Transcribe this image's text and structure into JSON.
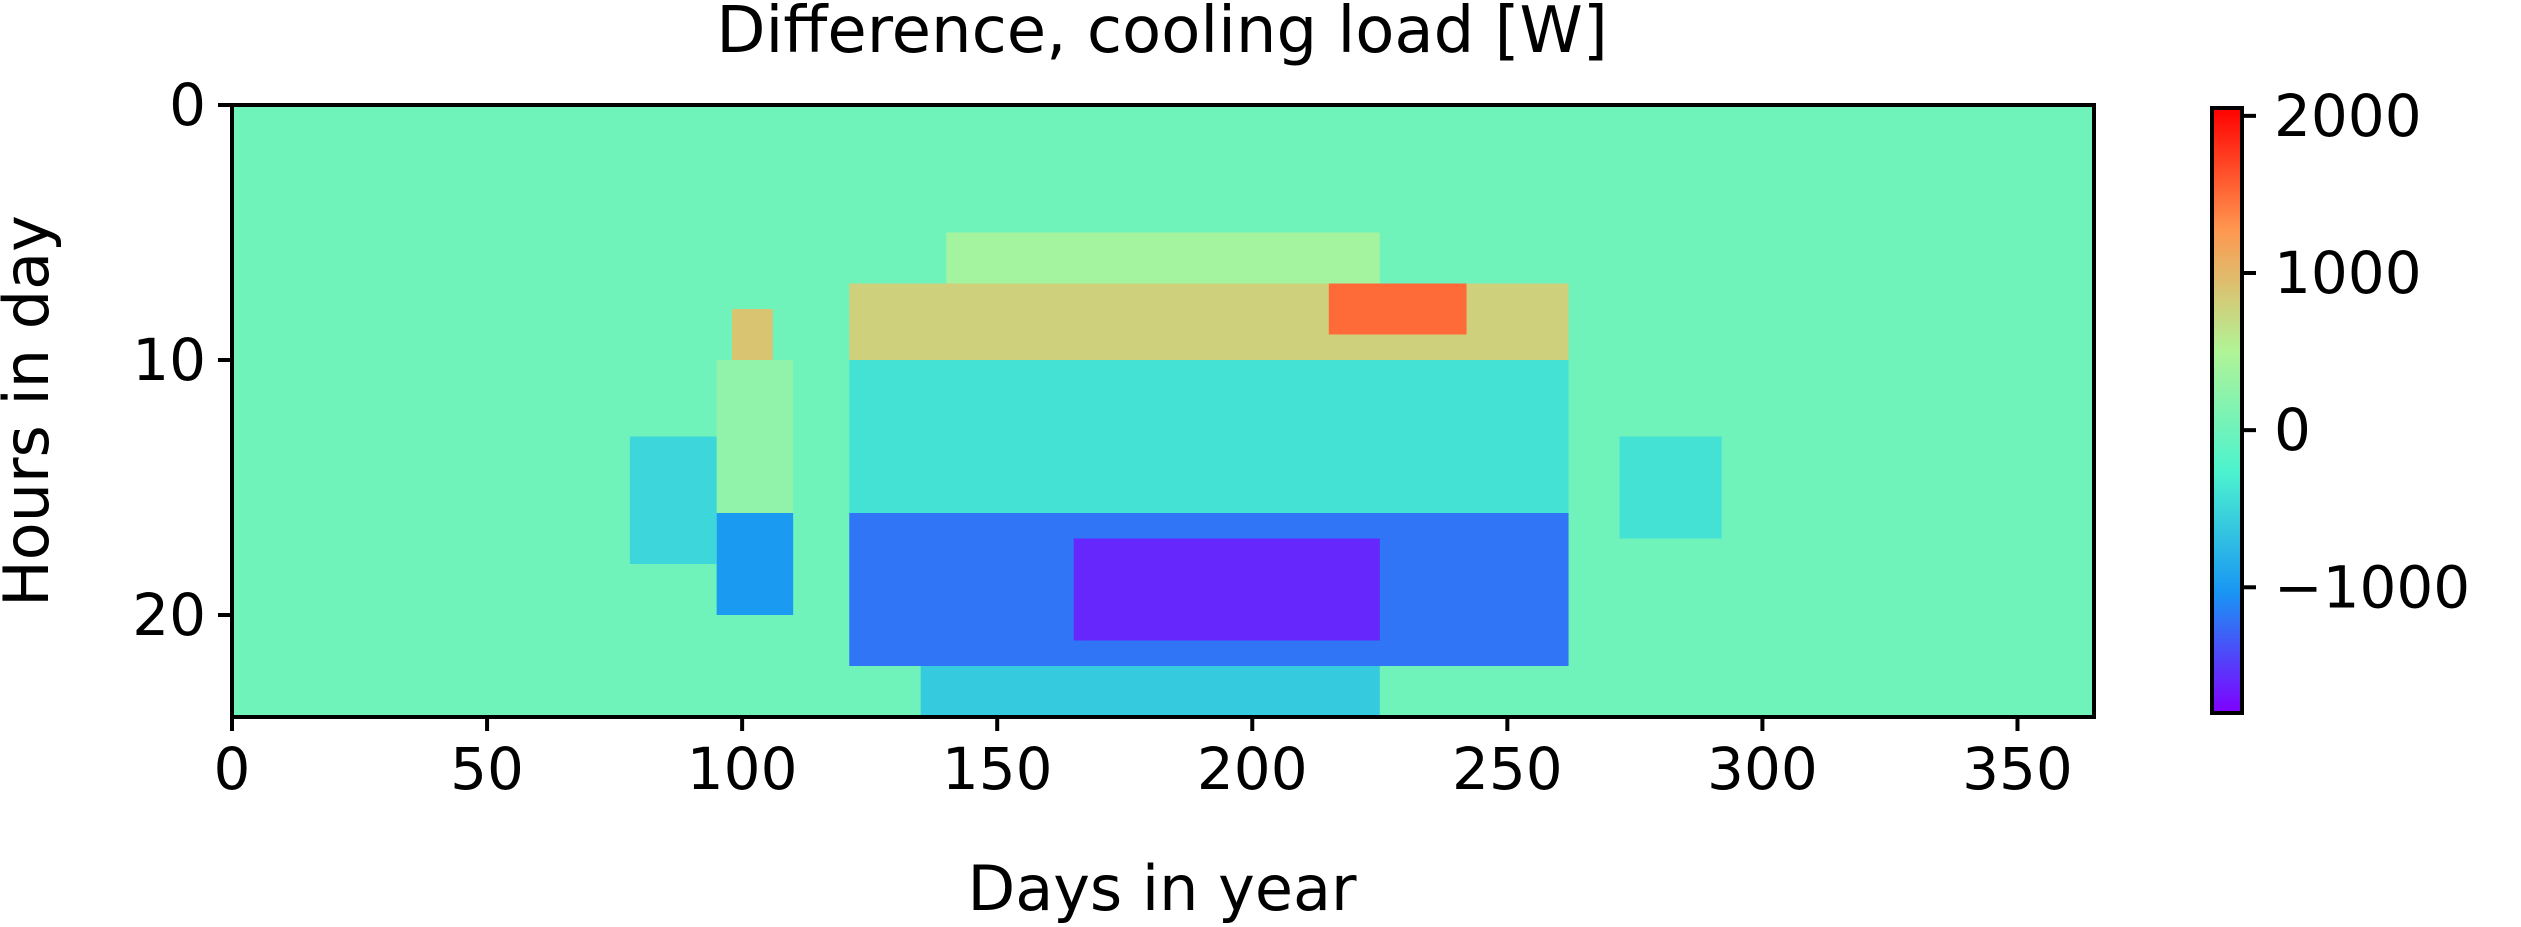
{
  "chart_data": {
    "type": "heatmap",
    "title": "Difference, cooling load [W]",
    "xlabel": "Days in year",
    "ylabel": "Hours in day",
    "xlim": [
      0,
      365
    ],
    "ylim": [
      0,
      24
    ],
    "y_axis_inverted": true,
    "xticks": [
      0,
      50,
      100,
      150,
      200,
      250,
      300,
      350
    ],
    "yticks": [
      0,
      10,
      20
    ],
    "grid": false,
    "colormap": "rainbow",
    "colormap_stops": [
      "#8000ff",
      "#1996f3",
      "#4df3ce",
      "#b2f396",
      "#ff964f",
      "#ff0000"
    ],
    "background_value": 0,
    "colorbar": {
      "label": "",
      "range": [
        -1800,
        2050
      ],
      "ticks": [
        2000,
        1000,
        0,
        -1000
      ],
      "tick_labels": [
        "2000",
        "1000",
        "0",
        "−1000"
      ],
      "placement": "right"
    },
    "rows_description": "hour-of-day bands with approximate mean value per day range",
    "bands": [
      {
        "hours": [
          5,
          7
        ],
        "days": [
          140,
          225
        ],
        "value": 400
      },
      {
        "hours": [
          7,
          10
        ],
        "days": [
          121,
          262
        ],
        "value": 800
      },
      {
        "hours": [
          8,
          10
        ],
        "days": [
          98,
          106
        ],
        "value": 900
      },
      {
        "hours": [
          7,
          9
        ],
        "days": [
          215,
          242
        ],
        "value": 1500
      },
      {
        "hours": [
          10,
          16
        ],
        "days": [
          121,
          262
        ],
        "value": -400
      },
      {
        "hours": [
          10,
          16
        ],
        "days": [
          95,
          110
        ],
        "value": 250
      },
      {
        "hours": [
          16,
          22
        ],
        "days": [
          121,
          262
        ],
        "value": -1200
      },
      {
        "hours": [
          17,
          21
        ],
        "days": [
          165,
          225
        ],
        "value": -1600
      },
      {
        "hours": [
          16,
          20
        ],
        "days": [
          95,
          110
        ],
        "value": -1000
      },
      {
        "hours": [
          22,
          24
        ],
        "days": [
          135,
          225
        ],
        "value": -600
      },
      {
        "hours": [
          13,
          18
        ],
        "days": [
          78,
          95
        ],
        "value": -500
      },
      {
        "hours": [
          13,
          17
        ],
        "days": [
          272,
          292
        ],
        "value": -400
      }
    ]
  }
}
